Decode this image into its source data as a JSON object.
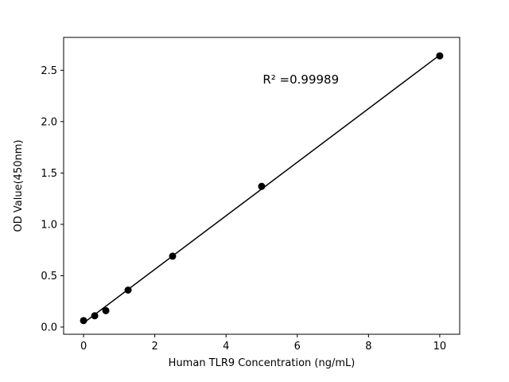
{
  "chart_data": {
    "type": "scatter",
    "title": "",
    "xlabel": "Human TLR9 Concentration (ng/mL)",
    "ylabel": "OD Value(450nm)",
    "series": [
      {
        "name": "standard-points",
        "x": [
          0,
          0.313,
          0.625,
          1.25,
          2.5,
          5,
          10
        ],
        "y": [
          0.063,
          0.11,
          0.16,
          0.36,
          0.69,
          1.37,
          2.64
        ]
      }
    ],
    "fit_line": {
      "x": [
        0,
        10
      ],
      "y": [
        0.04,
        2.648
      ]
    },
    "annotation": {
      "text": "R² =0.99989",
      "x": 6.1,
      "y": 2.37
    },
    "xticks": [
      0,
      2,
      4,
      6,
      8,
      10
    ],
    "xticklabels": [
      "0",
      "2",
      "4",
      "6",
      "8",
      "10"
    ],
    "yticks": [
      0,
      0.5,
      1.0,
      1.5,
      2.0,
      2.5
    ],
    "yticklabels": [
      "0.0",
      "0.5",
      "1.0",
      "1.5",
      "2.0",
      "2.5"
    ],
    "xlim": [
      -0.56,
      10.56
    ],
    "ylim": [
      -0.07,
      2.82
    ],
    "grid": false,
    "legend": "none",
    "marker_color": "#000000",
    "line_color": "#000000",
    "axis_color": "#000000",
    "background": "#ffffff"
  }
}
